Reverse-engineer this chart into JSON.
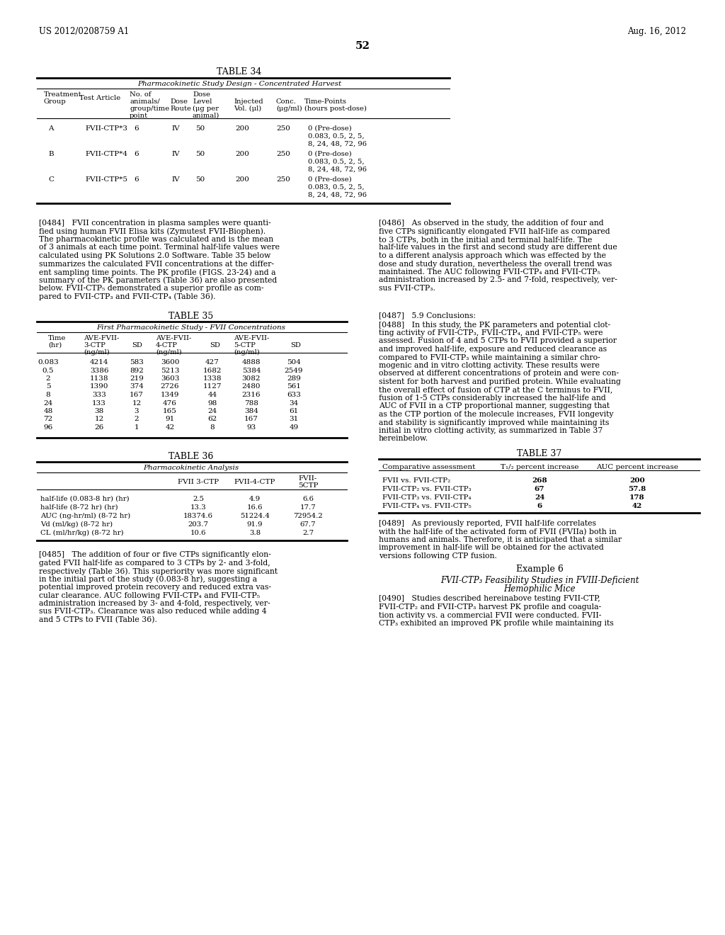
{
  "patent_number": "US 2012/0208759 A1",
  "patent_date": "Aug. 16, 2012",
  "page_number": "52",
  "background_color": "#ffffff",
  "table34_title": "TABLE 34",
  "table34_subtitle": "Pharmacokinetic Study Design - Concentrated Harvest",
  "table34_rows": [
    [
      "A",
      "FVII-CTP*3",
      "6",
      "IV",
      "50",
      "200",
      "250",
      "0 (Pre-dose)\n0.083, 0.5, 2, 5,\n8, 24, 48, 72, 96"
    ],
    [
      "B",
      "FVII-CTP*4",
      "6",
      "IV",
      "50",
      "200",
      "250",
      "0 (Pre-dose)\n0.083, 0.5, 2, 5,\n8, 24, 48, 72, 96"
    ],
    [
      "C",
      "FVII-CTP*5",
      "6",
      "IV",
      "50",
      "200",
      "250",
      "0 (Pre-dose)\n0.083, 0.5, 2, 5,\n8, 24, 48, 72, 96"
    ]
  ],
  "table35_title": "TABLE 35",
  "table35_subtitle": "First Pharmacokinetic Study - FVII Concentrations",
  "table35_rows": [
    [
      "0.083",
      "4214",
      "583",
      "3600",
      "427",
      "4888",
      "504"
    ],
    [
      "0.5",
      "3386",
      "892",
      "5213",
      "1682",
      "5384",
      "2549"
    ],
    [
      "2",
      "1138",
      "219",
      "3603",
      "1338",
      "3082",
      "289"
    ],
    [
      "5",
      "1390",
      "374",
      "2726",
      "1127",
      "2480",
      "561"
    ],
    [
      "8",
      "333",
      "167",
      "1349",
      "44",
      "2316",
      "633"
    ],
    [
      "24",
      "133",
      "12",
      "476",
      "98",
      "788",
      "34"
    ],
    [
      "48",
      "38",
      "3",
      "165",
      "24",
      "384",
      "61"
    ],
    [
      "72",
      "12",
      "2",
      "91",
      "62",
      "167",
      "31"
    ],
    [
      "96",
      "26",
      "1",
      "42",
      "8",
      "93",
      "49"
    ]
  ],
  "table36_title": "TABLE 36",
  "table36_subtitle": "Pharmacokinetic Analysis",
  "table36_rows": [
    [
      "half-life (0.083-8 hr) (hr)",
      "2.5",
      "4.9",
      "6.6"
    ],
    [
      "half-life (8-72 hr) (hr)",
      "13.3",
      "16.6",
      "17.7"
    ],
    [
      "AUC (ng-hr/ml) (8-72 hr)",
      "18374.6",
      "51224.4",
      "72954.2"
    ],
    [
      "Vd (ml/kg) (8-72 hr)",
      "203.7",
      "91.9",
      "67.7"
    ],
    [
      "CL (ml/hr/kg) (8-72 hr)",
      "10.6",
      "3.8",
      "2.7"
    ]
  ],
  "table37_title": "TABLE 37",
  "table37_rows": [
    [
      "FVII vs. FVII-CTP₂",
      "268",
      "200"
    ],
    [
      "FVII-CTP₂ vs. FVII-CTP₃",
      "67",
      "57.8"
    ],
    [
      "FVII-CTP₃ vs. FVII-CTP₄",
      "24",
      "178"
    ],
    [
      "FVII-CTP₄ vs. FVII-CTP₅",
      "6",
      "42"
    ]
  ]
}
